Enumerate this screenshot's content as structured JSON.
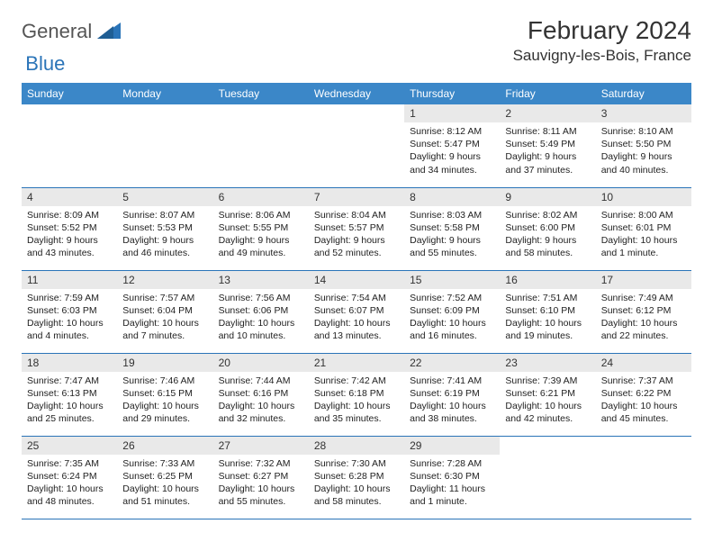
{
  "logo": {
    "part1": "General",
    "part2": "Blue"
  },
  "title": "February 2024",
  "location": "Sauvigny-les-Bois, France",
  "colors": {
    "header_bg": "#3b87c8",
    "header_text": "#ffffff",
    "daynum_bg": "#e9e9e9",
    "border": "#2a74b8",
    "logo_gray": "#555555",
    "logo_blue": "#2a74b8"
  },
  "day_headers": [
    "Sunday",
    "Monday",
    "Tuesday",
    "Wednesday",
    "Thursday",
    "Friday",
    "Saturday"
  ],
  "weeks": [
    [
      {
        "n": "",
        "sunrise": "",
        "sunset": "",
        "daylight": "",
        "empty": true
      },
      {
        "n": "",
        "sunrise": "",
        "sunset": "",
        "daylight": "",
        "empty": true
      },
      {
        "n": "",
        "sunrise": "",
        "sunset": "",
        "daylight": "",
        "empty": true
      },
      {
        "n": "",
        "sunrise": "",
        "sunset": "",
        "daylight": "",
        "empty": true
      },
      {
        "n": "1",
        "sunrise": "Sunrise: 8:12 AM",
        "sunset": "Sunset: 5:47 PM",
        "daylight": "Daylight: 9 hours and 34 minutes."
      },
      {
        "n": "2",
        "sunrise": "Sunrise: 8:11 AM",
        "sunset": "Sunset: 5:49 PM",
        "daylight": "Daylight: 9 hours and 37 minutes."
      },
      {
        "n": "3",
        "sunrise": "Sunrise: 8:10 AM",
        "sunset": "Sunset: 5:50 PM",
        "daylight": "Daylight: 9 hours and 40 minutes."
      }
    ],
    [
      {
        "n": "4",
        "sunrise": "Sunrise: 8:09 AM",
        "sunset": "Sunset: 5:52 PM",
        "daylight": "Daylight: 9 hours and 43 minutes."
      },
      {
        "n": "5",
        "sunrise": "Sunrise: 8:07 AM",
        "sunset": "Sunset: 5:53 PM",
        "daylight": "Daylight: 9 hours and 46 minutes."
      },
      {
        "n": "6",
        "sunrise": "Sunrise: 8:06 AM",
        "sunset": "Sunset: 5:55 PM",
        "daylight": "Daylight: 9 hours and 49 minutes."
      },
      {
        "n": "7",
        "sunrise": "Sunrise: 8:04 AM",
        "sunset": "Sunset: 5:57 PM",
        "daylight": "Daylight: 9 hours and 52 minutes."
      },
      {
        "n": "8",
        "sunrise": "Sunrise: 8:03 AM",
        "sunset": "Sunset: 5:58 PM",
        "daylight": "Daylight: 9 hours and 55 minutes."
      },
      {
        "n": "9",
        "sunrise": "Sunrise: 8:02 AM",
        "sunset": "Sunset: 6:00 PM",
        "daylight": "Daylight: 9 hours and 58 minutes."
      },
      {
        "n": "10",
        "sunrise": "Sunrise: 8:00 AM",
        "sunset": "Sunset: 6:01 PM",
        "daylight": "Daylight: 10 hours and 1 minute."
      }
    ],
    [
      {
        "n": "11",
        "sunrise": "Sunrise: 7:59 AM",
        "sunset": "Sunset: 6:03 PM",
        "daylight": "Daylight: 10 hours and 4 minutes."
      },
      {
        "n": "12",
        "sunrise": "Sunrise: 7:57 AM",
        "sunset": "Sunset: 6:04 PM",
        "daylight": "Daylight: 10 hours and 7 minutes."
      },
      {
        "n": "13",
        "sunrise": "Sunrise: 7:56 AM",
        "sunset": "Sunset: 6:06 PM",
        "daylight": "Daylight: 10 hours and 10 minutes."
      },
      {
        "n": "14",
        "sunrise": "Sunrise: 7:54 AM",
        "sunset": "Sunset: 6:07 PM",
        "daylight": "Daylight: 10 hours and 13 minutes."
      },
      {
        "n": "15",
        "sunrise": "Sunrise: 7:52 AM",
        "sunset": "Sunset: 6:09 PM",
        "daylight": "Daylight: 10 hours and 16 minutes."
      },
      {
        "n": "16",
        "sunrise": "Sunrise: 7:51 AM",
        "sunset": "Sunset: 6:10 PM",
        "daylight": "Daylight: 10 hours and 19 minutes."
      },
      {
        "n": "17",
        "sunrise": "Sunrise: 7:49 AM",
        "sunset": "Sunset: 6:12 PM",
        "daylight": "Daylight: 10 hours and 22 minutes."
      }
    ],
    [
      {
        "n": "18",
        "sunrise": "Sunrise: 7:47 AM",
        "sunset": "Sunset: 6:13 PM",
        "daylight": "Daylight: 10 hours and 25 minutes."
      },
      {
        "n": "19",
        "sunrise": "Sunrise: 7:46 AM",
        "sunset": "Sunset: 6:15 PM",
        "daylight": "Daylight: 10 hours and 29 minutes."
      },
      {
        "n": "20",
        "sunrise": "Sunrise: 7:44 AM",
        "sunset": "Sunset: 6:16 PM",
        "daylight": "Daylight: 10 hours and 32 minutes."
      },
      {
        "n": "21",
        "sunrise": "Sunrise: 7:42 AM",
        "sunset": "Sunset: 6:18 PM",
        "daylight": "Daylight: 10 hours and 35 minutes."
      },
      {
        "n": "22",
        "sunrise": "Sunrise: 7:41 AM",
        "sunset": "Sunset: 6:19 PM",
        "daylight": "Daylight: 10 hours and 38 minutes."
      },
      {
        "n": "23",
        "sunrise": "Sunrise: 7:39 AM",
        "sunset": "Sunset: 6:21 PM",
        "daylight": "Daylight: 10 hours and 42 minutes."
      },
      {
        "n": "24",
        "sunrise": "Sunrise: 7:37 AM",
        "sunset": "Sunset: 6:22 PM",
        "daylight": "Daylight: 10 hours and 45 minutes."
      }
    ],
    [
      {
        "n": "25",
        "sunrise": "Sunrise: 7:35 AM",
        "sunset": "Sunset: 6:24 PM",
        "daylight": "Daylight: 10 hours and 48 minutes."
      },
      {
        "n": "26",
        "sunrise": "Sunrise: 7:33 AM",
        "sunset": "Sunset: 6:25 PM",
        "daylight": "Daylight: 10 hours and 51 minutes."
      },
      {
        "n": "27",
        "sunrise": "Sunrise: 7:32 AM",
        "sunset": "Sunset: 6:27 PM",
        "daylight": "Daylight: 10 hours and 55 minutes."
      },
      {
        "n": "28",
        "sunrise": "Sunrise: 7:30 AM",
        "sunset": "Sunset: 6:28 PM",
        "daylight": "Daylight: 10 hours and 58 minutes."
      },
      {
        "n": "29",
        "sunrise": "Sunrise: 7:28 AM",
        "sunset": "Sunset: 6:30 PM",
        "daylight": "Daylight: 11 hours and 1 minute."
      },
      {
        "n": "",
        "sunrise": "",
        "sunset": "",
        "daylight": "",
        "empty": true
      },
      {
        "n": "",
        "sunrise": "",
        "sunset": "",
        "daylight": "",
        "empty": true
      }
    ]
  ]
}
